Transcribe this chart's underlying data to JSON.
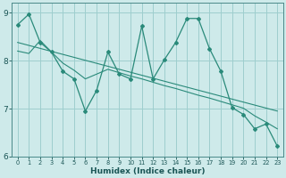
{
  "title": "",
  "xlabel": "Humidex (Indice chaleur)",
  "bg_color": "#ceeaea",
  "grid_color": "#9ecece",
  "line_color": "#2a8a7a",
  "xlim": [
    -0.5,
    23.5
  ],
  "ylim": [
    6,
    9.2
  ],
  "yticks": [
    6,
    7,
    8,
    9
  ],
  "xticks": [
    0,
    1,
    2,
    3,
    4,
    5,
    6,
    7,
    8,
    9,
    10,
    11,
    12,
    13,
    14,
    15,
    16,
    17,
    18,
    19,
    20,
    21,
    22,
    23
  ],
  "line1_x": [
    0,
    1,
    2,
    3,
    4,
    5,
    6,
    7,
    8,
    9,
    10,
    11,
    12,
    13,
    14,
    15,
    16,
    17,
    18,
    19,
    20,
    21,
    22,
    23
  ],
  "line1_y": [
    8.75,
    8.97,
    8.38,
    8.18,
    7.78,
    7.62,
    6.95,
    7.38,
    8.18,
    7.72,
    7.62,
    8.72,
    7.62,
    8.02,
    8.38,
    8.88,
    8.88,
    8.25,
    7.78,
    7.02,
    6.88,
    6.58,
    6.68,
    6.22
  ],
  "line2_x": [
    0,
    23
  ],
  "line2_y": [
    8.38,
    6.95
  ],
  "line3_x": [
    0,
    1,
    2,
    3,
    4,
    5,
    6,
    7,
    8,
    9,
    10,
    11,
    12,
    13,
    14,
    15,
    16,
    17,
    18,
    19,
    20,
    21,
    22,
    23
  ],
  "line3_y": [
    8.2,
    8.15,
    8.42,
    8.18,
    7.95,
    7.8,
    7.62,
    7.72,
    7.82,
    7.75,
    7.68,
    7.62,
    7.55,
    7.48,
    7.42,
    7.35,
    7.28,
    7.22,
    7.15,
    7.08,
    7.01,
    6.85,
    6.72,
    6.58
  ]
}
